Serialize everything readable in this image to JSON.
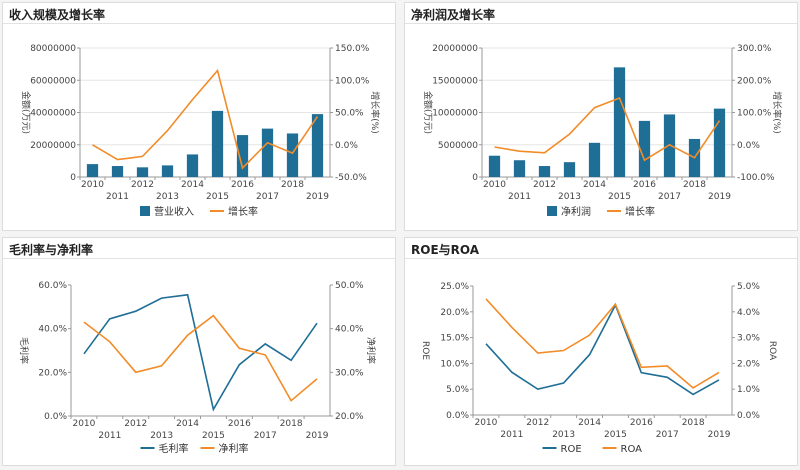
{
  "colors": {
    "blue": "#1f6e96",
    "orange": "#f28c28",
    "axis": "#999999",
    "grid": "#e5e5e5"
  },
  "chart_data": [
    {
      "id": "revenue",
      "type": "bar+line",
      "title": "收入规模及增长率",
      "categories": [
        "2010",
        "2011",
        "2012",
        "2013",
        "2014",
        "2015",
        "2016",
        "2017",
        "2018",
        "2019"
      ],
      "series": [
        {
          "name": "营业收入",
          "type": "bar",
          "axis": "left",
          "values": [
            8000000,
            6800000,
            6000000,
            7200000,
            14000000,
            41000000,
            26000000,
            30000000,
            27000000,
            39000000
          ]
        },
        {
          "name": "增长率",
          "type": "line",
          "axis": "right",
          "values": [
            0.0,
            -23.0,
            -18.0,
            22.0,
            70.0,
            115.0,
            -36.0,
            3.0,
            -13.0,
            44.0
          ]
        }
      ],
      "ylabel_left": "金额(万元)",
      "ylabel_right": "增长率(%)",
      "ylim_left": [
        0,
        80000000
      ],
      "ylim_right": [
        -50,
        150
      ],
      "left_ticks": [
        "0",
        "20000000",
        "40000000",
        "60000000",
        "80000000"
      ],
      "right_ticks": [
        "-50.0%",
        "0.0%",
        "50.0%",
        "100.0%",
        "150.0%"
      ],
      "grid": true,
      "legend": "bottom"
    },
    {
      "id": "profit",
      "type": "bar+line",
      "title": "净利润及增长率",
      "categories": [
        "2010",
        "2011",
        "2012",
        "2013",
        "2014",
        "2015",
        "2016",
        "2017",
        "2018",
        "2019"
      ],
      "series": [
        {
          "name": "净利润",
          "type": "bar",
          "axis": "left",
          "values": [
            3300000,
            2600000,
            1700000,
            2300000,
            5300000,
            17000000,
            8700000,
            9700000,
            5900000,
            10600000
          ]
        },
        {
          "name": "增长率",
          "type": "line",
          "axis": "right",
          "values": [
            -7.0,
            -20.0,
            -25.0,
            33.0,
            115.0,
            145.0,
            -48.0,
            0.0,
            -40.0,
            75.0
          ]
        }
      ],
      "ylabel_left": "金额(万元)",
      "ylabel_right": "增长率(%)",
      "ylim_left": [
        0,
        20000000
      ],
      "ylim_right": [
        -100,
        300
      ],
      "left_ticks": [
        "0",
        "5000000",
        "10000000",
        "15000000",
        "20000000"
      ],
      "right_ticks": [
        "-100.0%",
        "0.0%",
        "100.0%",
        "200.0%",
        "300.0%"
      ],
      "grid": true,
      "legend": "bottom"
    },
    {
      "id": "margins",
      "type": "line",
      "title": "毛利率与净利率",
      "categories": [
        "2010",
        "2011",
        "2012",
        "2013",
        "2014",
        "2015",
        "2016",
        "2017",
        "2018",
        "2019"
      ],
      "series": [
        {
          "name": "毛利率",
          "axis": "left",
          "values": [
            28.5,
            44.5,
            48.0,
            54.0,
            55.5,
            3.0,
            23.5,
            33.0,
            25.5,
            42.5
          ]
        },
        {
          "name": "净利率",
          "axis": "right",
          "values": [
            41.5,
            37.0,
            30.0,
            31.5,
            38.5,
            43.0,
            35.5,
            34.0,
            23.5,
            28.5
          ]
        }
      ],
      "ylabel_left": "毛利率",
      "ylabel_right": "净利率",
      "ylim_left": [
        0,
        60
      ],
      "ylim_right": [
        20,
        50
      ],
      "left_ticks": [
        "0.0%",
        "20.0%",
        "40.0%",
        "60.0%"
      ],
      "right_ticks": [
        "20.0%",
        "30.0%",
        "40.0%",
        "50.0%"
      ],
      "grid": false,
      "legend": "bottom"
    },
    {
      "id": "roe",
      "type": "line",
      "title": "ROE与ROA",
      "categories": [
        "2010",
        "2011",
        "2012",
        "2013",
        "2014",
        "2015",
        "2016",
        "2017",
        "2018",
        "2019"
      ],
      "series": [
        {
          "name": "ROE",
          "axis": "left",
          "values": [
            13.8,
            8.3,
            5.0,
            6.2,
            11.7,
            21.3,
            8.2,
            7.3,
            4.0,
            6.8
          ]
        },
        {
          "name": "ROA",
          "axis": "right",
          "values": [
            4.5,
            3.4,
            2.4,
            2.5,
            3.1,
            4.3,
            1.85,
            1.9,
            1.05,
            1.65
          ]
        }
      ],
      "ylabel_left": "ROE",
      "ylabel_right": "ROA",
      "ylim_left": [
        0,
        25
      ],
      "ylim_right": [
        0,
        5
      ],
      "left_ticks": [
        "0.0%",
        "5.0%",
        "10.0%",
        "15.0%",
        "20.0%",
        "25.0%"
      ],
      "right_ticks": [
        "0.0%",
        "1.0%",
        "2.0%",
        "3.0%",
        "4.0%",
        "5.0%"
      ],
      "grid": false,
      "legend": "bottom"
    }
  ]
}
